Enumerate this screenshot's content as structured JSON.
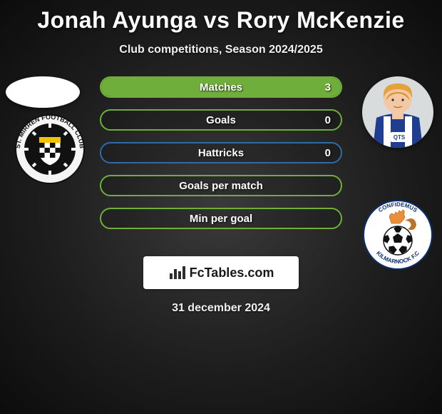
{
  "title": "Jonah Ayunga vs Rory McKenzie",
  "subtitle": "Club competitions, Season 2024/2025",
  "date": "31 december 2024",
  "brand": "FcTables.com",
  "colors": {
    "border_green": "#6fae3a",
    "fill_green": "#6fae3a",
    "border_blue": "#2f6aa8",
    "text": "#ffffff"
  },
  "stats": [
    {
      "label": "Matches",
      "right_value": "3",
      "right_fill_pct": 100,
      "border": "#6fae3a",
      "fill": "#6fae3a"
    },
    {
      "label": "Goals",
      "right_value": "0",
      "right_fill_pct": 0,
      "border": "#6fae3a",
      "fill": "#6fae3a"
    },
    {
      "label": "Hattricks",
      "right_value": "0",
      "right_fill_pct": 0,
      "border": "#2f6aa8",
      "fill": "#2f6aa8"
    },
    {
      "label": "Goals per match",
      "right_value": "",
      "right_fill_pct": 0,
      "border": "#6fae3a",
      "fill": "#6fae3a"
    },
    {
      "label": "Min per goal",
      "right_value": "",
      "right_fill_pct": 0,
      "border": "#6fae3a",
      "fill": "#6fae3a"
    }
  ],
  "left_player": {
    "name": "Jonah Ayunga",
    "club": "St. Mirren"
  },
  "right_player": {
    "name": "Rory McKenzie",
    "club": "Kilmarnock",
    "kit_primary": "#1f3e8f",
    "kit_stripe": "#ffffff",
    "skin": "#f2c9a4",
    "hair": "#e6a23a"
  }
}
